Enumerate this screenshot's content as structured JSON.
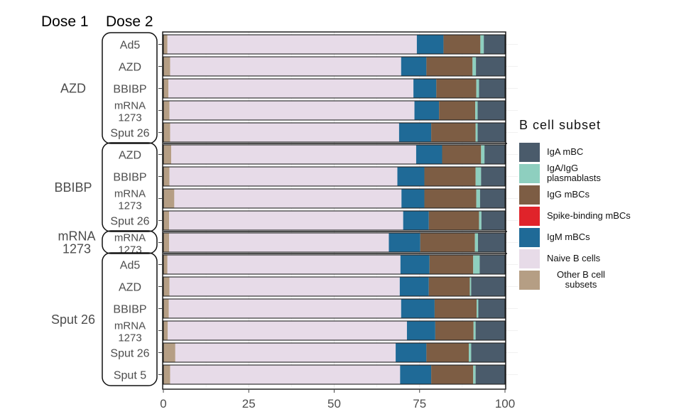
{
  "chart_data": {
    "type": "bar",
    "orientation": "horizontal",
    "stacked": true,
    "column_headers": [
      "Dose 1",
      "Dose 2"
    ],
    "xlim": [
      0,
      100
    ],
    "xticks": [
      0,
      25,
      50,
      75,
      100
    ],
    "xlabel": "",
    "ylabel": "",
    "grid": true,
    "legend_title": "B  cell  subset",
    "series_order": [
      "Other B cell subsets",
      "Naive B cells",
      "IgM mBCs",
      "Spike-binding mBCs",
      "IgG mBCs",
      "IgA/IgG plasmablasts",
      "IgA mBC"
    ],
    "legend": [
      {
        "name": "IgA mBC",
        "label": "IgA mBC",
        "color": "#4a5b6b"
      },
      {
        "name": "IgA/IgG plasmablasts",
        "label": "IgA/IgG plasmablasts",
        "color": "#8ecfbf"
      },
      {
        "name": "IgG mBCs",
        "label": "IgG mBCs",
        "color": "#7d5d44"
      },
      {
        "name": "Spike-binding mBCs",
        "label": "Spike-binding mBCs",
        "color": "#e0232a"
      },
      {
        "name": "IgM mBCs",
        "label": "IgM mBCs",
        "color": "#1f6a97"
      },
      {
        "name": "Naive B cells",
        "label": "Naive B cells",
        "color": "#e7dbe8"
      },
      {
        "name": "Other B cell subsets",
        "label": "Other B cell subsets",
        "color": "#b59e84"
      }
    ],
    "groups": [
      {
        "dose1": "AZD",
        "rows": [
          {
            "dose2": "Ad5",
            "values": [
              1.2,
              73.0,
              7.8,
              0,
              10.8,
              1.0,
              6.2
            ]
          },
          {
            "dose2": "AZD",
            "values": [
              2.0,
              67.6,
              7.4,
              0,
              13.5,
              1.0,
              8.5
            ]
          },
          {
            "dose2": "BBIBP",
            "values": [
              1.5,
              71.7,
              6.7,
              0,
              11.7,
              0.8,
              7.6
            ]
          },
          {
            "dose2": "mRNA 1273",
            "values": [
              1.8,
              71.7,
              7.2,
              0,
              10.6,
              0.7,
              8.0
            ]
          },
          {
            "dose2": "Sput 26",
            "values": [
              2.0,
              67.0,
              9.4,
              0,
              13.0,
              0.6,
              8.0
            ]
          }
        ]
      },
      {
        "dose1": "BBIBP",
        "rows": [
          {
            "dose2": "AZD",
            "values": [
              2.3,
              71.7,
              7.6,
              0,
              11.4,
              1.0,
              6.0
            ]
          },
          {
            "dose2": "BBIBP",
            "values": [
              1.8,
              66.7,
              7.9,
              0,
              15.0,
              1.6,
              7.0
            ]
          },
          {
            "dose2": "mRNA 1273",
            "values": [
              3.2,
              66.5,
              6.7,
              0,
              15.2,
              1.1,
              7.3
            ]
          },
          {
            "dose2": "Sput 26",
            "values": [
              1.7,
              68.5,
              7.5,
              0,
              14.7,
              0.7,
              6.9
            ]
          }
        ]
      },
      {
        "dose1": "mRNA 1273",
        "rows": [
          {
            "dose2": "mRNA 1273",
            "values": [
              1.7,
              64.3,
              9.2,
              0,
              16.0,
              0.9,
              7.9
            ]
          }
        ]
      },
      {
        "dose1": "Sput 26",
        "rows": [
          {
            "dose2": "Ad5",
            "values": [
              1.2,
              68.2,
              8.5,
              0,
              12.8,
              1.9,
              7.4
            ]
          },
          {
            "dose2": "AZD",
            "values": [
              1.8,
              67.4,
              8.5,
              0,
              12.0,
              0.4,
              9.9
            ]
          },
          {
            "dose2": "BBIBP",
            "values": [
              1.6,
              68.0,
              9.8,
              0,
              12.3,
              0.5,
              7.8
            ]
          },
          {
            "dose2": "mRNA 1273",
            "values": [
              1.3,
              70.0,
              8.3,
              0,
              11.2,
              0.6,
              8.6
            ]
          },
          {
            "dose2": "Sput 26",
            "values": [
              3.5,
              64.5,
              9.0,
              0,
              12.4,
              0.7,
              9.9
            ]
          },
          {
            "dose2": "Sput 5",
            "values": [
              2.0,
              67.3,
              9.1,
              0,
              12.3,
              0.7,
              8.6
            ]
          }
        ]
      }
    ]
  }
}
